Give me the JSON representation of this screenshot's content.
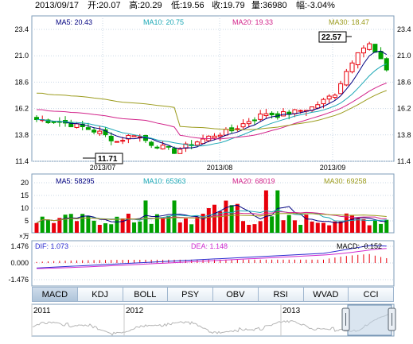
{
  "header": {
    "date": "2013/09/17",
    "open": "开:20.07",
    "high": "高:20.29",
    "low": "低:19.56",
    "close": "收:19.79",
    "volume": "量:36980",
    "change": "幅:-3.04%"
  },
  "price_panel": {
    "ma5": "MA5: 20.43",
    "ma10": "MA10: 20.75",
    "ma20": "MA20: 19.33",
    "ma30": "MA30: 18.47",
    "y_ticks": [
      "23.4",
      "21.0",
      "18.6",
      "16.2",
      "13.8",
      "11.4"
    ],
    "x_ticks": [
      "2013/07",
      "2013/08",
      "2013/09"
    ],
    "max_label": "22.57",
    "min_label": "11.71"
  },
  "volume_panel": {
    "ma5": "MA5: 58295",
    "ma10": "MA10: 65363",
    "ma20": "MA20: 68019",
    "ma30": "MA30: 69258",
    "y_ticks": [
      "20",
      "15",
      "10",
      "5"
    ],
    "unit": "×万"
  },
  "macd_panel": {
    "dif": "DIF: 1.073",
    "dea": "DEA: 1.148",
    "macd": "MACD: -0.152",
    "y_ticks": [
      "1.476",
      "0.000",
      "-1.476"
    ]
  },
  "tabs": [
    "MACD",
    "KDJ",
    "BOLL",
    "PSY",
    "OBV",
    "RSI",
    "WVAD",
    "CCI"
  ],
  "navigator": {
    "years": [
      "2011",
      "2012",
      "2013"
    ]
  },
  "colors": {
    "up": "#e8000b",
    "down": "#00a000",
    "ma5": "#000080",
    "ma10": "#1aa7b5",
    "ma20": "#d2238a",
    "ma30": "#9c9c1e",
    "grid": "#c9d7e6",
    "border": "#7f9db9",
    "dif": "#2b2bd0",
    "dea": "#d02bd0"
  }
}
